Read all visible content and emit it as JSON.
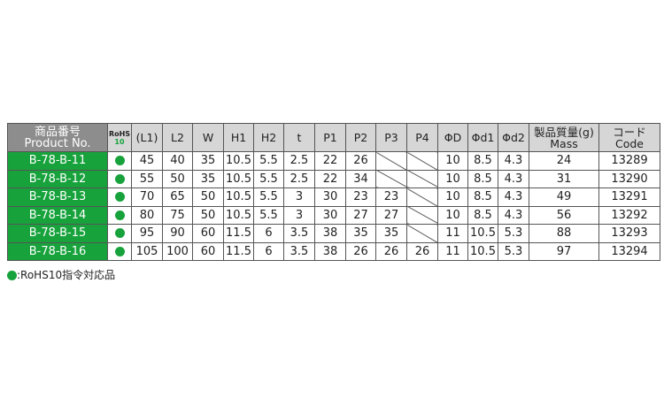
{
  "headers": {
    "product_jp": "商品番号",
    "product_en": "Product No.",
    "rohs_top": "RoHS",
    "rohs_bottom": "10",
    "cols": [
      "(L1)",
      "L2",
      "W",
      "H1",
      "H2",
      "t",
      "P1",
      "P2",
      "P3",
      "P4",
      "ΦD",
      "Φd1",
      "Φd2"
    ],
    "mass_jp": "製品質量(g)",
    "mass_en": "Mass",
    "code_jp": "コード",
    "code_en": "Code"
  },
  "rows": [
    {
      "product": "B-78-B-11",
      "rohs": true,
      "vals": [
        "45",
        "40",
        "35",
        "10.5",
        "5.5",
        "2.5",
        "22",
        "26",
        "",
        "",
        "10",
        "8.5",
        "4.3"
      ],
      "mass": "24",
      "code": "13289"
    },
    {
      "product": "B-78-B-12",
      "rohs": true,
      "vals": [
        "55",
        "50",
        "35",
        "10.5",
        "5.5",
        "2.5",
        "22",
        "34",
        "",
        "",
        "10",
        "8.5",
        "4.3"
      ],
      "mass": "31",
      "code": "13290"
    },
    {
      "product": "B-78-B-13",
      "rohs": true,
      "vals": [
        "70",
        "65",
        "50",
        "10.5",
        "5.5",
        "3",
        "30",
        "23",
        "23",
        "",
        "10",
        "8.5",
        "4.3"
      ],
      "mass": "49",
      "code": "13291"
    },
    {
      "product": "B-78-B-14",
      "rohs": true,
      "vals": [
        "80",
        "75",
        "50",
        "10.5",
        "5.5",
        "3",
        "30",
        "27",
        "27",
        "",
        "10",
        "8.5",
        "4.3"
      ],
      "mass": "56",
      "code": "13292"
    },
    {
      "product": "B-78-B-15",
      "rohs": true,
      "vals": [
        "95",
        "90",
        "60",
        "11.5",
        "6",
        "3.5",
        "38",
        "35",
        "35",
        "",
        "11",
        "10.5",
        "5.3"
      ],
      "mass": "88",
      "code": "13293"
    },
    {
      "product": "B-78-B-16",
      "rohs": true,
      "vals": [
        "105",
        "100",
        "60",
        "11.5",
        "6",
        "3.5",
        "38",
        "26",
        "26",
        "26",
        "11",
        "10.5",
        "5.3"
      ],
      "mass": "97",
      "code": "13294"
    }
  ],
  "note": ":RoHS10指令対応品",
  "colors": {
    "green": "#17a23c",
    "header": "#d6d6d6",
    "product_header": "#8d8d8d"
  }
}
